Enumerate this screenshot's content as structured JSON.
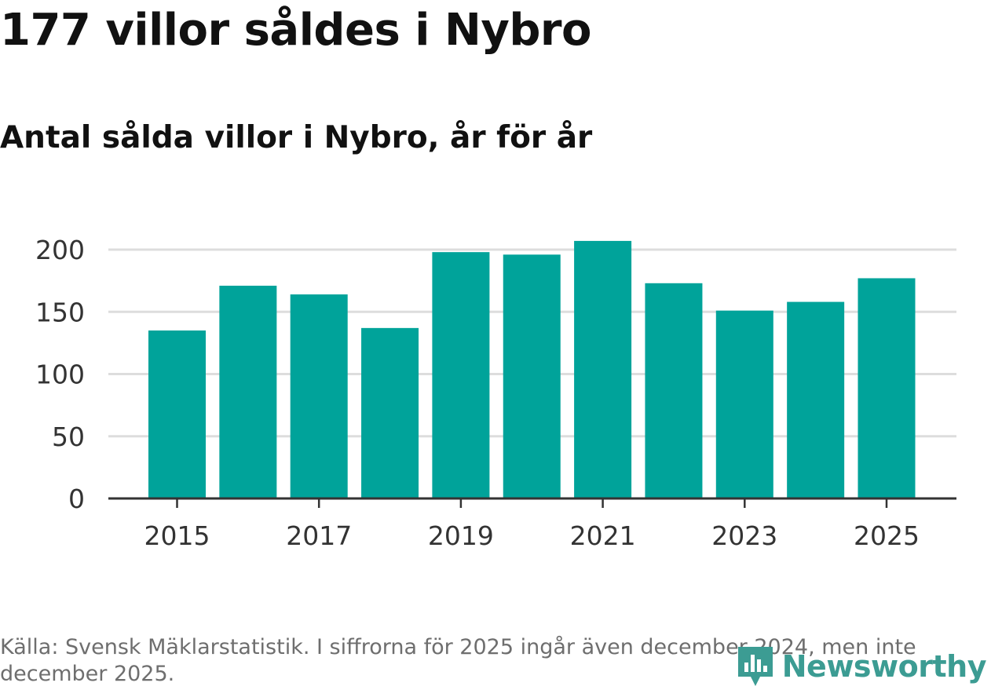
{
  "title": "177 villor såldes i Nybro",
  "subtitle": "Antal sålda villor i Nybro, år för år",
  "footnote": "Källa: Svensk Mäklarstatistik. I siffrorna för 2025 ingår även december 2024, men inte december 2025.",
  "logo": {
    "text": "Newsworthy",
    "icon": "newsworthy-logo-icon",
    "color": "#3c9c93"
  },
  "colors": {
    "bar": "#00a39a",
    "grid": "#dddddd",
    "axis": "#333333",
    "text": "#333333"
  },
  "chart_data": {
    "type": "bar",
    "title": "Antal sålda villor i Nybro, år för år",
    "xlabel": "",
    "ylabel": "",
    "categories": [
      "2015",
      "2016",
      "2017",
      "2018",
      "2019",
      "2020",
      "2021",
      "2022",
      "2023",
      "2024",
      "2025"
    ],
    "values": [
      135,
      171,
      164,
      137,
      198,
      196,
      207,
      173,
      151,
      158,
      177
    ],
    "ylim": [
      0,
      210
    ],
    "yticks": [
      0,
      50,
      100,
      150,
      200
    ],
    "xtick_labels": [
      "2015",
      "2017",
      "2019",
      "2021",
      "2023",
      "2025"
    ],
    "grid": true,
    "legend": "none"
  }
}
